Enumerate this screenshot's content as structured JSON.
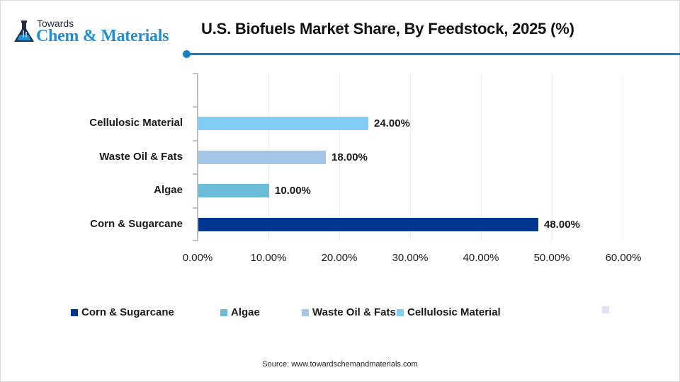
{
  "brand": {
    "small": "Towards",
    "main": "Chem & Materials",
    "icon": "flask-icon",
    "color": "#1f8fd6"
  },
  "header": {
    "title": "U.S. Biofuels Market Share, By Feedstock, 2025 (%)",
    "accent_color": "#1b7fc4"
  },
  "chart_data": {
    "type": "bar",
    "orientation": "horizontal",
    "title": "U.S. Biofuels Market Share, By Feedstock, 2025 (%)",
    "xlabel": "",
    "ylabel": "",
    "categories": [
      "Corn & Sugarcane",
      "Algae",
      "Waste Oil & Fats",
      "Cellulosic Material"
    ],
    "values": [
      48.0,
      10.0,
      18.0,
      24.0
    ],
    "value_labels": [
      "48.00%",
      "10.00%",
      "18.00%",
      "24.00%"
    ],
    "colors": [
      "#003591",
      "#6bbcd7",
      "#a3c6e8",
      "#7fcdf7"
    ],
    "xlim": [
      0,
      60
    ],
    "xticks": [
      "0.00%",
      "10.00%",
      "20.00%",
      "30.00%",
      "40.00%",
      "50.00%",
      "60.00%"
    ],
    "grid": "vertical",
    "legend": {
      "position": "bottom",
      "entries": [
        {
          "label": "Corn & Sugarcane",
          "color": "#003591"
        },
        {
          "label": "Algae",
          "color": "#6bbcd7"
        },
        {
          "label": "Waste Oil & Fats",
          "color": "#a3c6e8"
        },
        {
          "label": "Cellulosic Material",
          "color": "#7fcdf7"
        },
        {
          "label": "",
          "color": "#dde3f5"
        }
      ]
    }
  },
  "footer": {
    "source": "Source: www.towardschemandmaterials.com"
  }
}
